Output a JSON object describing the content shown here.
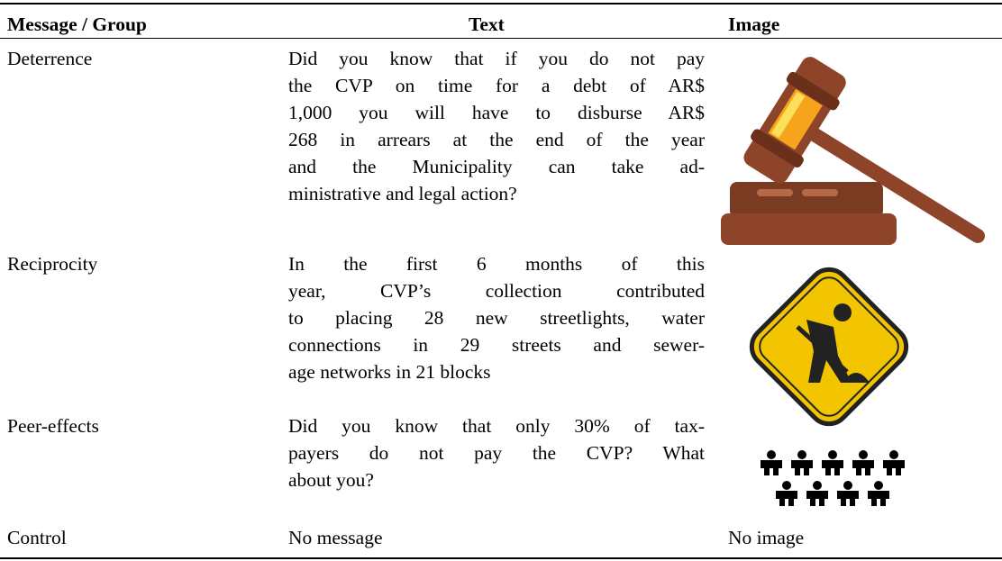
{
  "table": {
    "headers": [
      "Message / Group",
      "Text",
      "Image"
    ],
    "rows": [
      {
        "group": "Deterrence",
        "text_lines": [
          "Did you know that if you do not pay",
          "the CVP on time for a debt of AR$",
          "1,000 you will have to disburse AR$",
          "268 in arrears at the end of the year",
          "and the Municipality can take ad-",
          "ministrative and legal action?"
        ],
        "image": null
      },
      {
        "group": "Reciprocity",
        "text_lines": [
          "In the first 6 months of this",
          "year, CVP’s collection contributed",
          "to placing 28 new streetlights, water",
          "connections in 29 streets and sewer-",
          "age networks in 21 blocks"
        ],
        "image": null
      },
      {
        "group": "Peer-effects",
        "text_lines": [
          "Did you know that only 30% of tax-",
          "payers do not pay the CVP? What",
          "about you?"
        ],
        "image": null
      },
      {
        "group": "Control",
        "text_lines": [
          "No message"
        ],
        "image": "No image"
      }
    ]
  }
}
